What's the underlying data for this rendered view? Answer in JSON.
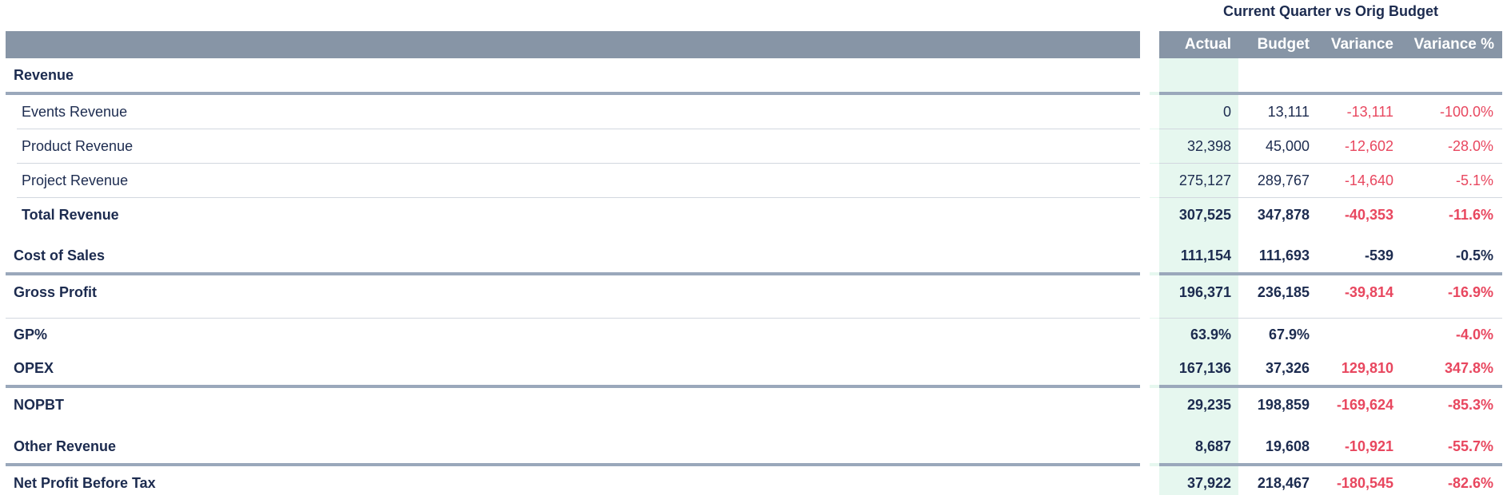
{
  "header": {
    "title": "Current Quarter vs Orig Budget",
    "columns": [
      "Actual",
      "Budget",
      "Variance",
      "Variance %"
    ]
  },
  "colors": {
    "header_bg": "#8795a6",
    "text": "#1c2b4f",
    "negative": "#e8475f",
    "actual_highlight": "#e6f7ef",
    "divider": "#9aa8bb"
  },
  "rows": [
    {
      "label": "Revenue",
      "bold": true,
      "indent": false,
      "values": [
        "",
        "",
        "",
        ""
      ],
      "red": [
        false,
        false,
        false,
        false
      ]
    },
    {
      "label": "Events Revenue",
      "bold": false,
      "indent": true,
      "values": [
        "0",
        "13,111",
        "-13,111",
        "-100.0%"
      ],
      "red": [
        false,
        false,
        true,
        true
      ]
    },
    {
      "label": "Product Revenue",
      "bold": false,
      "indent": true,
      "values": [
        "32,398",
        "45,000",
        "-12,602",
        "-28.0%"
      ],
      "red": [
        false,
        false,
        true,
        true
      ]
    },
    {
      "label": "Project Revenue",
      "bold": false,
      "indent": true,
      "values": [
        "275,127",
        "289,767",
        "-14,640",
        "-5.1%"
      ],
      "red": [
        false,
        false,
        true,
        true
      ]
    },
    {
      "label": "Total Revenue",
      "bold": true,
      "indent": true,
      "values": [
        "307,525",
        "347,878",
        "-40,353",
        "-11.6%"
      ],
      "red": [
        false,
        false,
        true,
        true
      ]
    },
    {
      "label": "Cost of Sales",
      "bold": true,
      "indent": false,
      "values": [
        "111,154",
        "111,693",
        "-539",
        "-0.5%"
      ],
      "red": [
        false,
        false,
        false,
        false
      ]
    },
    {
      "label": "Gross Profit",
      "bold": true,
      "indent": false,
      "values": [
        "196,371",
        "236,185",
        "-39,814",
        "-16.9%"
      ],
      "red": [
        false,
        false,
        true,
        true
      ]
    },
    {
      "label": "GP%",
      "bold": true,
      "indent": false,
      "values": [
        "63.9%",
        "67.9%",
        "",
        "-4.0%"
      ],
      "red": [
        false,
        false,
        false,
        true
      ]
    },
    {
      "label": "OPEX",
      "bold": true,
      "indent": false,
      "values": [
        "167,136",
        "37,326",
        "129,810",
        "347.8%"
      ],
      "red": [
        false,
        false,
        true,
        true
      ]
    },
    {
      "label": "NOPBT",
      "bold": true,
      "indent": false,
      "values": [
        "29,235",
        "198,859",
        "-169,624",
        "-85.3%"
      ],
      "red": [
        false,
        false,
        true,
        true
      ]
    },
    {
      "label": "Other Revenue",
      "bold": true,
      "indent": false,
      "values": [
        "8,687",
        "19,608",
        "-10,921",
        "-55.7%"
      ],
      "red": [
        false,
        false,
        true,
        true
      ]
    },
    {
      "label": "Net Profit Before Tax",
      "bold": true,
      "indent": false,
      "values": [
        "37,922",
        "218,467",
        "-180,545",
        "-82.6%"
      ],
      "red": [
        false,
        false,
        true,
        true
      ]
    }
  ]
}
